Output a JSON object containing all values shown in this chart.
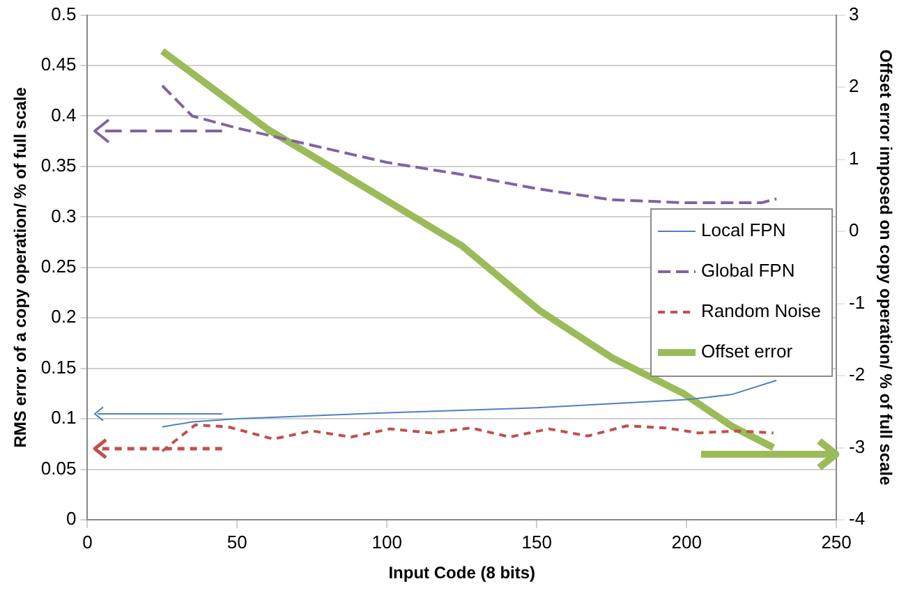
{
  "chart_data": {
    "type": "line",
    "xlabel": "Input Code (8 bits)",
    "ylabel": "RMS error of a copy operation/ % of full scale",
    "y2label": "Offset error imposed on copy operation/ % of full scale",
    "xlim": [
      0,
      250
    ],
    "xticks": [
      0,
      50,
      100,
      150,
      200,
      250
    ],
    "ylim": [
      0,
      0.5
    ],
    "yticks": [
      0,
      0.05,
      0.1,
      0.15,
      0.2,
      0.25,
      0.3,
      0.35,
      0.4,
      0.45,
      0.5
    ],
    "y2lim": [
      -4,
      3
    ],
    "y2ticks": [
      -4,
      -3,
      -2,
      -1,
      0,
      1,
      2,
      3
    ],
    "grid": "y",
    "legend": "right",
    "marker": "none",
    "series": [
      {
        "name": "Local FPN",
        "color": "#4f81bd",
        "line_style": "solid",
        "x": [
          25,
          35,
          50,
          100,
          150,
          200,
          215,
          230
        ],
        "values": [
          0.092,
          0.097,
          0.1,
          0.106,
          0.111,
          0.119,
          0.124,
          0.138
        ]
      },
      {
        "name": "Global FPN",
        "color": "#8064a2",
        "line_style": "dashed",
        "x": [
          25,
          35,
          50,
          75,
          100,
          125,
          150,
          175,
          200,
          225,
          230
        ],
        "values": [
          0.43,
          0.4,
          0.388,
          0.371,
          0.354,
          0.342,
          0.328,
          0.317,
          0.314,
          0.314,
          0.318
        ]
      },
      {
        "name": "Random Noise",
        "color": "#c0504d",
        "line_style": "dotted",
        "x": [
          25,
          36,
          47,
          62,
          75,
          88,
          101,
          115,
          128,
          141,
          154,
          167,
          180,
          193,
          204,
          217,
          229
        ],
        "values": [
          0.068,
          0.094,
          0.092,
          0.08,
          0.088,
          0.082,
          0.09,
          0.086,
          0.091,
          0.082,
          0.09,
          0.083,
          0.093,
          0.091,
          0.086,
          0.088,
          0.086
        ]
      },
      {
        "name": "Offset error",
        "color": "#9bbb59",
        "line_style": "solid",
        "axis": "y2",
        "x": [
          25,
          60,
          93,
          125,
          151,
          175,
          199,
          215,
          229
        ],
        "values": [
          2.5,
          1.42,
          0.6,
          -0.2,
          -1.1,
          -1.75,
          -2.25,
          -2.7,
          -3.0
        ]
      }
    ]
  }
}
